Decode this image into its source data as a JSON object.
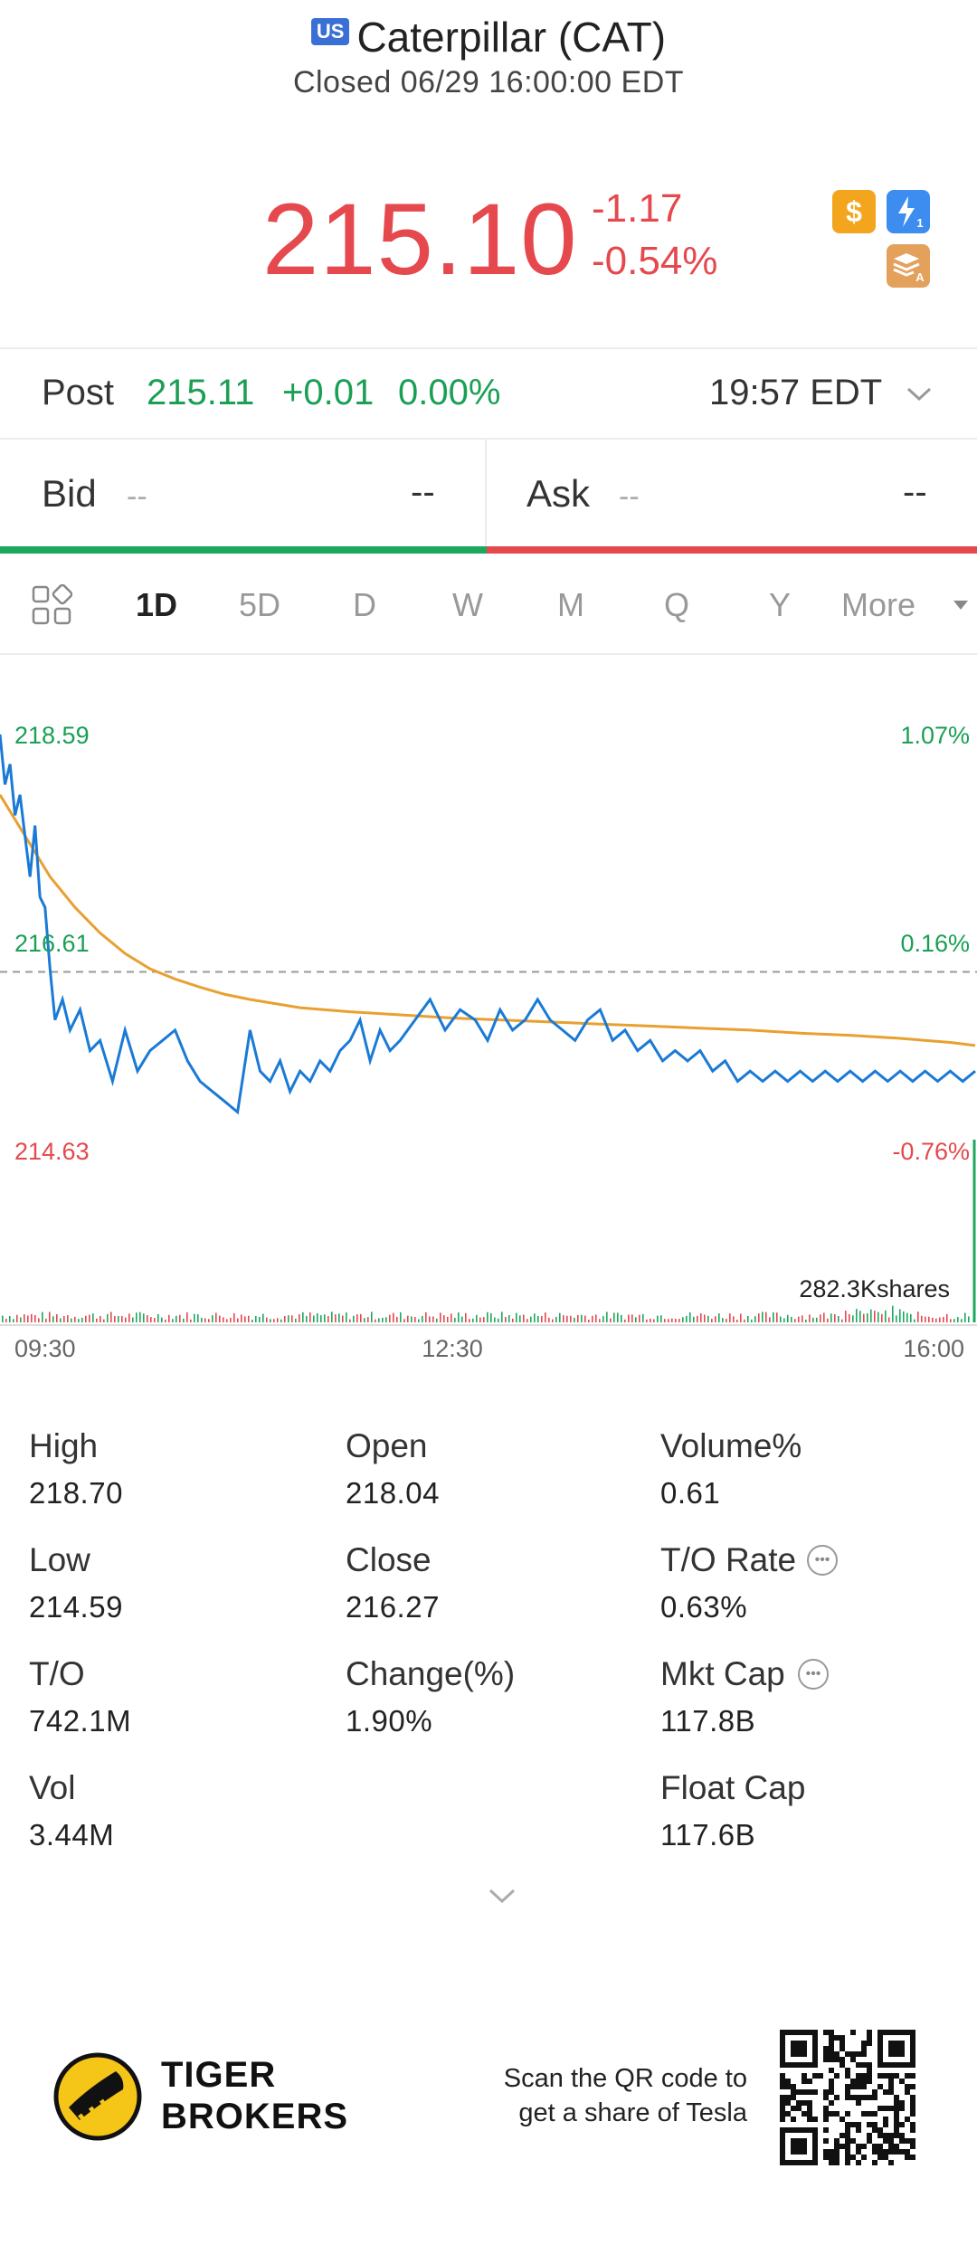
{
  "header": {
    "market_badge": "US",
    "title": "Caterpillar (CAT)",
    "status": "Closed 06/29 16:00:00 EDT"
  },
  "quote": {
    "price": "215.10",
    "change": "-1.17",
    "change_pct": "-0.54%",
    "badges": [
      "dollar-badge-icon",
      "lightning-badge-icon",
      "stack-badge-icon"
    ],
    "badge_lightning_sub": "1",
    "badge_stack_sub": "A",
    "colors": {
      "down": "#e5484d",
      "up": "#1a9f55"
    }
  },
  "post": {
    "label": "Post",
    "price": "215.11",
    "change": "+0.01",
    "change_pct": "0.00%",
    "time": "19:57 EDT"
  },
  "bid_ask": {
    "bid_label": "Bid",
    "bid_size": "--",
    "bid_price": "--",
    "ask_label": "Ask",
    "ask_size": "--",
    "ask_price": "--"
  },
  "tabs": {
    "items": [
      "1D",
      "5D",
      "D",
      "W",
      "M",
      "Q",
      "Y"
    ],
    "active": "1D",
    "more": "More"
  },
  "chart_data": {
    "type": "line",
    "y_left_labels": {
      "top": "218.59",
      "mid": "216.61",
      "bottom": "214.63"
    },
    "y_right_labels": {
      "top": "1.07%",
      "mid": "0.16%",
      "bottom": "-0.76%"
    },
    "x_labels": [
      "09:30",
      "12:30",
      "16:00"
    ],
    "ylim": [
      214.63,
      218.59
    ],
    "reference_line": 216.27,
    "volume_label": "282.3Kshares",
    "series": [
      {
        "color": "#1a7ad6",
        "x": [
          0,
          2,
          4,
          6,
          8,
          10,
          12,
          14,
          16,
          18,
          20,
          22,
          25,
          28,
          32,
          36,
          40,
          45,
          50,
          55,
          60,
          65,
          70,
          75,
          80,
          85,
          90,
          95,
          100,
          104,
          108,
          112,
          116,
          120,
          124,
          128,
          132,
          136,
          140,
          144,
          148,
          152,
          156,
          160,
          166,
          172,
          178,
          184,
          190,
          195,
          200,
          205,
          210,
          215,
          220,
          225,
          230,
          235,
          240,
          245,
          250,
          255,
          260,
          265,
          270,
          275,
          280,
          285,
          290,
          295,
          300,
          305,
          310,
          315,
          320,
          325,
          330,
          335,
          340,
          345,
          350,
          355,
          360,
          365,
          370,
          375,
          380,
          385,
          390
        ],
        "values": [
          218.59,
          218.1,
          218.3,
          217.8,
          218.0,
          217.6,
          217.2,
          217.7,
          217.0,
          216.9,
          216.3,
          215.8,
          216.0,
          215.7,
          215.9,
          215.5,
          215.6,
          215.2,
          215.7,
          215.3,
          215.5,
          215.6,
          215.7,
          215.4,
          215.2,
          215.1,
          215.0,
          214.9,
          215.7,
          215.3,
          215.2,
          215.4,
          215.1,
          215.3,
          215.2,
          215.4,
          215.3,
          215.5,
          215.6,
          215.8,
          215.4,
          215.7,
          215.5,
          215.6,
          215.8,
          216.0,
          215.7,
          215.9,
          215.8,
          215.6,
          215.9,
          215.7,
          215.8,
          216.0,
          215.8,
          215.7,
          215.6,
          215.8,
          215.9,
          215.6,
          215.7,
          215.5,
          215.6,
          215.4,
          215.5,
          215.4,
          215.5,
          215.3,
          215.4,
          215.2,
          215.3,
          215.2,
          215.3,
          215.2,
          215.3,
          215.2,
          215.3,
          215.2,
          215.3,
          215.2,
          215.3,
          215.2,
          215.3,
          215.2,
          215.3,
          215.2,
          215.3,
          215.2,
          215.3
        ]
      },
      {
        "color": "#e8a030",
        "x": [
          0,
          10,
          20,
          30,
          40,
          50,
          60,
          70,
          80,
          90,
          100,
          120,
          140,
          160,
          180,
          200,
          220,
          240,
          260,
          280,
          300,
          320,
          340,
          360,
          380,
          390
        ],
        "values": [
          218.0,
          217.6,
          217.2,
          216.9,
          216.65,
          216.45,
          216.3,
          216.2,
          216.12,
          216.05,
          216.0,
          215.92,
          215.88,
          215.85,
          215.82,
          215.8,
          215.78,
          215.76,
          215.74,
          215.72,
          215.7,
          215.67,
          215.65,
          215.62,
          215.58,
          215.55
        ]
      }
    ]
  },
  "stats": {
    "high_label": "High",
    "high": "218.70",
    "open_label": "Open",
    "open": "218.04",
    "volume_pct_label": "Volume%",
    "volume_pct": "0.61",
    "low_label": "Low",
    "low": "214.59",
    "close_label": "Close",
    "close": "216.27",
    "to_rate_label": "T/O Rate",
    "to_rate": "0.63%",
    "to_label": "T/O",
    "to": "742.1M",
    "change_label": "Change(%)",
    "change": "1.90%",
    "mkt_cap_label": "Mkt Cap",
    "mkt_cap": "117.8B",
    "vol_label": "Vol",
    "vol": "3.44M",
    "float_cap_label": "Float Cap",
    "float_cap": "117.6B"
  },
  "footer": {
    "brand_line1": "TIGER",
    "brand_line2": "BROKERS",
    "scan_line1": "Scan the QR code to",
    "scan_line2": "get a share of Tesla"
  }
}
